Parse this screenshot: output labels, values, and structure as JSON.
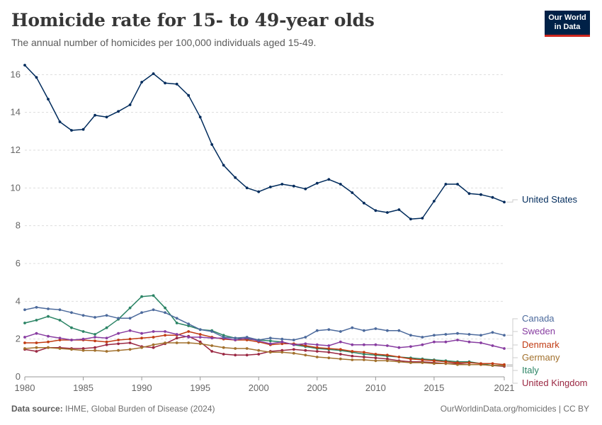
{
  "header": {
    "title": "Homicide rate for 15- to 49-year olds",
    "subtitle": "The annual number of homicides per 100,000 individuals aged 15-49."
  },
  "logo": {
    "line1": "Our World",
    "line2": "in Data"
  },
  "footer": {
    "source_label": "Data source:",
    "source_text": "IHME, Global Burden of Disease (2024)",
    "url": "OurWorldinData.org/homicides | CC BY"
  },
  "chart_data": {
    "type": "line",
    "x": [
      1980,
      1981,
      1982,
      1983,
      1984,
      1985,
      1986,
      1987,
      1988,
      1989,
      1990,
      1991,
      1992,
      1993,
      1994,
      1995,
      1996,
      1997,
      1998,
      1999,
      2000,
      2001,
      2002,
      2003,
      2004,
      2005,
      2006,
      2007,
      2008,
      2009,
      2010,
      2011,
      2012,
      2013,
      2014,
      2015,
      2016,
      2017,
      2018,
      2019,
      2020,
      2021
    ],
    "x_ticks": [
      1980,
      1985,
      1990,
      1995,
      2000,
      2005,
      2010,
      2015,
      2021
    ],
    "y_ticks": [
      0,
      2,
      4,
      6,
      8,
      10,
      12,
      14,
      16
    ],
    "xlim": [
      1980,
      2021
    ],
    "ylim": [
      0,
      16.5
    ],
    "grid": "horizontal dashed",
    "series": [
      {
        "name": "United States",
        "color": "#002b5c",
        "values": [
          16.5,
          15.85,
          14.7,
          13.5,
          13.05,
          13.1,
          13.85,
          13.75,
          14.05,
          14.4,
          15.6,
          16.05,
          15.55,
          15.5,
          14.9,
          13.75,
          12.3,
          11.2,
          10.55,
          10.0,
          9.8,
          10.05,
          10.2,
          10.1,
          9.95,
          10.25,
          10.45,
          10.2,
          9.75,
          9.2,
          8.8,
          8.7,
          8.85,
          8.35,
          8.4,
          9.3,
          10.2,
          10.2,
          9.7,
          9.65,
          9.5,
          9.25
        ]
      },
      {
        "name": "Canada",
        "color": "#4c6a9c",
        "values": [
          3.55,
          3.68,
          3.6,
          3.55,
          3.4,
          3.25,
          3.15,
          3.25,
          3.1,
          3.1,
          3.4,
          3.55,
          3.4,
          3.1,
          2.8,
          2.5,
          2.4,
          2.1,
          2.05,
          2.1,
          1.95,
          2.05,
          2.0,
          1.95,
          2.1,
          2.45,
          2.5,
          2.4,
          2.6,
          2.45,
          2.55,
          2.45,
          2.45,
          2.2,
          2.1,
          2.2,
          2.25,
          2.3,
          2.25,
          2.2,
          2.35,
          2.2
        ]
      },
      {
        "name": "Sweden",
        "color": "#883da1",
        "values": [
          2.1,
          2.3,
          2.15,
          2.05,
          1.95,
          2.0,
          2.1,
          2.05,
          2.3,
          2.45,
          2.3,
          2.4,
          2.4,
          2.25,
          2.1,
          2.1,
          2.05,
          2.05,
          1.95,
          2.05,
          1.9,
          1.75,
          1.85,
          1.7,
          1.75,
          1.7,
          1.65,
          1.85,
          1.7,
          1.7,
          1.7,
          1.65,
          1.55,
          1.6,
          1.7,
          1.85,
          1.85,
          1.95,
          1.85,
          1.8,
          1.65,
          1.5
        ]
      },
      {
        "name": "Denmark",
        "color": "#c13c14",
        "values": [
          1.8,
          1.8,
          1.85,
          1.95,
          1.95,
          1.95,
          1.9,
          1.85,
          1.95,
          2.0,
          2.05,
          2.1,
          2.2,
          2.2,
          2.4,
          2.25,
          2.1,
          2.0,
          1.95,
          1.95,
          1.85,
          1.7,
          1.75,
          1.75,
          1.65,
          1.55,
          1.5,
          1.45,
          1.35,
          1.3,
          1.2,
          1.15,
          1.05,
          0.95,
          0.9,
          0.85,
          0.8,
          0.75,
          0.75,
          0.7,
          0.7,
          0.65
        ]
      },
      {
        "name": "Germany",
        "color": "#a2712d",
        "values": [
          1.5,
          1.55,
          1.55,
          1.5,
          1.45,
          1.4,
          1.4,
          1.35,
          1.4,
          1.45,
          1.55,
          1.7,
          1.8,
          1.8,
          1.8,
          1.75,
          1.65,
          1.55,
          1.5,
          1.5,
          1.4,
          1.3,
          1.3,
          1.25,
          1.15,
          1.05,
          1.0,
          0.95,
          0.9,
          0.9,
          0.85,
          0.85,
          0.8,
          0.75,
          0.75,
          0.7,
          0.7,
          0.65,
          0.65,
          0.65,
          0.6,
          0.6
        ]
      },
      {
        "name": "Italy",
        "color": "#2b8465",
        "values": [
          2.85,
          3.0,
          3.2,
          3.0,
          2.6,
          2.4,
          2.25,
          2.6,
          3.05,
          3.65,
          4.25,
          4.3,
          3.65,
          2.85,
          2.7,
          2.5,
          2.45,
          2.2,
          2.05,
          2.0,
          1.95,
          1.9,
          1.85,
          1.7,
          1.6,
          1.5,
          1.45,
          1.4,
          1.3,
          1.2,
          1.15,
          1.1,
          1.05,
          1.0,
          0.95,
          0.9,
          0.85,
          0.8,
          0.8,
          0.7,
          0.6,
          0.6
        ]
      },
      {
        "name": "United Kingdom",
        "color": "#9a2742",
        "values": [
          1.45,
          1.35,
          1.55,
          1.55,
          1.5,
          1.5,
          1.55,
          1.7,
          1.75,
          1.8,
          1.6,
          1.55,
          1.75,
          2.05,
          2.15,
          1.85,
          1.35,
          1.2,
          1.15,
          1.15,
          1.2,
          1.35,
          1.4,
          1.45,
          1.4,
          1.35,
          1.3,
          1.2,
          1.1,
          1.05,
          1.0,
          0.95,
          0.85,
          0.8,
          0.8,
          0.75,
          0.7,
          0.7,
          0.65,
          0.65,
          0.6,
          0.55
        ]
      }
    ]
  }
}
